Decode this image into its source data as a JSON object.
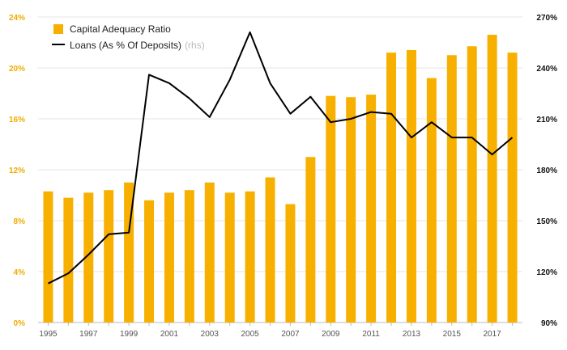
{
  "chart_data": {
    "type": "bar+line",
    "x": [
      1995,
      1996,
      1997,
      1998,
      1999,
      2000,
      2001,
      2002,
      2003,
      2004,
      2005,
      2006,
      2007,
      2008,
      2009,
      2010,
      2011,
      2012,
      2013,
      2014,
      2015,
      2016,
      2017,
      2018
    ],
    "x_tick_labels": [
      "1995",
      "1997",
      "1999",
      "2001",
      "2003",
      "2005",
      "2007",
      "2009",
      "2011",
      "2013",
      "2015",
      "2017"
    ],
    "series": [
      {
        "name": "Capital Adequacy Ratio",
        "type": "bar",
        "axis": "left",
        "color": "#f8b000",
        "values": [
          10.3,
          9.8,
          10.2,
          10.4,
          11.0,
          9.6,
          10.2,
          10.4,
          11.0,
          10.2,
          10.3,
          11.4,
          9.3,
          13.0,
          17.8,
          17.7,
          17.9,
          21.2,
          21.4,
          19.2,
          21.0,
          21.7,
          22.6,
          21.2
        ]
      },
      {
        "name": "Loans (As % Of Deposits)",
        "name_suffix": "(rhs)",
        "type": "line",
        "axis": "right",
        "color": "#000000",
        "values": [
          113,
          119,
          130,
          142,
          143,
          236,
          231,
          222,
          211,
          233,
          261,
          231,
          213,
          223,
          208,
          210,
          214,
          213,
          199,
          208,
          199,
          199,
          189,
          199
        ]
      }
    ],
    "y_left": {
      "min": 0,
      "max": 24,
      "ticks": [
        "0%",
        "4%",
        "8%",
        "12%",
        "16%",
        "20%",
        "24%"
      ],
      "color": "#f0ac00"
    },
    "y_right": {
      "min": 90,
      "max": 270,
      "ticks": [
        "90%",
        "120%",
        "150%",
        "180%",
        "210%",
        "240%",
        "270%"
      ],
      "color": "#111111"
    },
    "grid": true,
    "legend": "top-left"
  }
}
